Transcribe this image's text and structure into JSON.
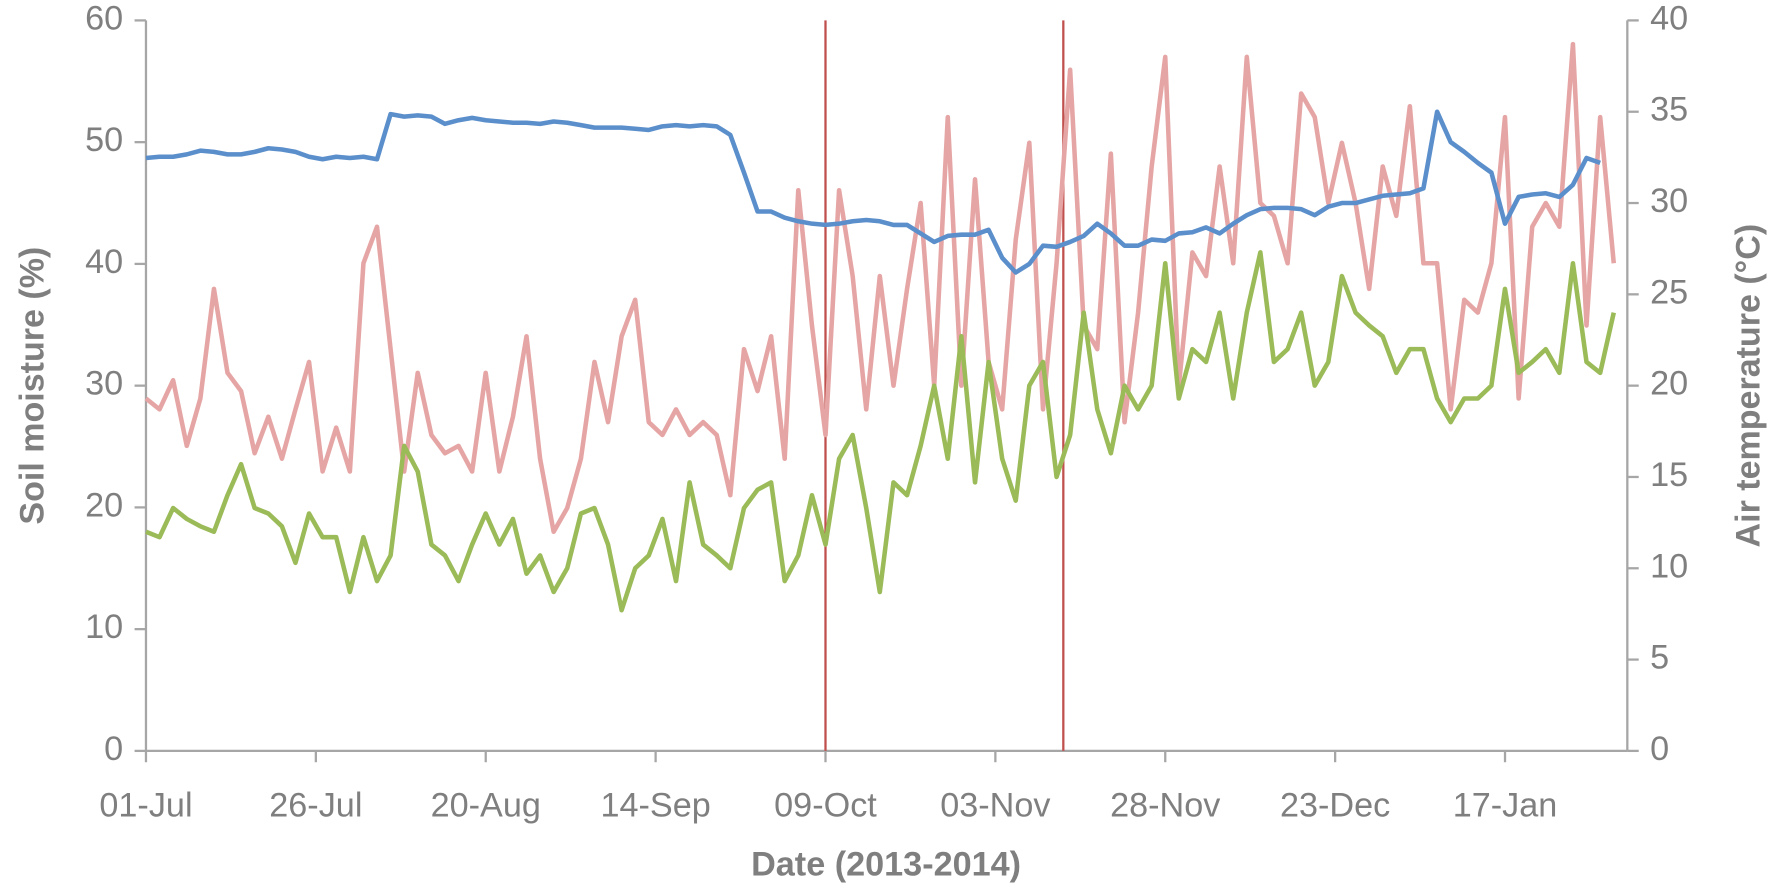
{
  "chart_data": {
    "type": "line",
    "xlabel": "Date (2013-2014)",
    "ylabel": "Soil moisture (%)",
    "y2label": "Air temperature (°C)",
    "xlim": [
      0,
      218
    ],
    "xticks": [
      {
        "value": 0,
        "label": "01-Jul"
      },
      {
        "value": 25,
        "label": "26-Jul"
      },
      {
        "value": 50,
        "label": "20-Aug"
      },
      {
        "value": 75,
        "label": "14-Sep"
      },
      {
        "value": 100,
        "label": "09-Oct"
      },
      {
        "value": 125,
        "label": "03-Nov"
      },
      {
        "value": 150,
        "label": "28-Nov"
      },
      {
        "value": 175,
        "label": "23-Dec"
      },
      {
        "value": 200,
        "label": "17-Jan"
      }
    ],
    "ylim": [
      0,
      60
    ],
    "yticks": [
      0,
      10,
      20,
      30,
      40,
      50,
      60
    ],
    "y2lim": [
      0,
      40
    ],
    "y2ticks": [
      0,
      5,
      10,
      15,
      20,
      25,
      30,
      35,
      40
    ],
    "vlines": [
      100,
      135
    ],
    "vline_color": "#c0504d",
    "x": [
      0,
      2,
      4,
      6,
      8,
      10,
      12,
      14,
      16,
      18,
      20,
      22,
      24,
      26,
      28,
      30,
      32,
      34,
      36,
      38,
      40,
      42,
      44,
      46,
      48,
      50,
      52,
      54,
      56,
      58,
      60,
      62,
      64,
      66,
      68,
      70,
      72,
      74,
      76,
      78,
      80,
      82,
      84,
      86,
      88,
      90,
      92,
      94,
      96,
      98,
      100,
      102,
      104,
      106,
      108,
      110,
      112,
      114,
      116,
      118,
      120,
      122,
      124,
      126,
      128,
      130,
      132,
      134,
      136,
      138,
      140,
      142,
      144,
      146,
      148,
      150,
      152,
      154,
      156,
      158,
      160,
      162,
      164,
      166,
      168,
      170,
      172,
      174,
      176,
      178,
      180,
      182,
      184,
      186,
      188,
      190,
      192,
      194,
      196,
      198,
      200,
      202,
      204,
      206,
      208,
      210,
      212,
      214,
      216
    ],
    "series": [
      {
        "color": "#e6a5a5",
        "axis": "y2",
        "values": [
          19.3,
          18.7,
          20.3,
          16.7,
          19.3,
          25.3,
          20.7,
          19.7,
          16.3,
          18.3,
          16,
          18.7,
          21.3,
          15.3,
          17.7,
          15.3,
          26.7,
          28.7,
          22,
          15.3,
          20.7,
          17.3,
          16.3,
          16.7,
          15.3,
          20.7,
          15.3,
          18.3,
          22.7,
          16,
          12,
          13.3,
          16,
          21.3,
          18,
          22.7,
          24.7,
          18,
          17.3,
          18.7,
          17.3,
          18,
          17.3,
          14,
          22,
          19.7,
          22.7,
          16,
          30.7,
          23.3,
          17.3,
          30.7,
          26,
          18.7,
          26,
          20,
          25.3,
          30,
          20,
          34.7,
          20,
          31.3,
          21.3,
          18.7,
          28,
          33.3,
          18.7,
          26.7,
          37.3,
          23.3,
          22,
          32.7,
          18,
          24,
          32,
          38,
          20,
          27.3,
          26,
          32,
          26.7,
          38,
          30,
          29.3,
          26.7,
          36,
          34.7,
          30,
          33.3,
          30,
          25.3,
          32,
          29.3,
          35.3,
          26.7,
          26.7,
          18.7,
          24.7,
          24,
          26.7,
          34.7,
          19.3,
          28.7,
          30,
          28.7,
          38.7,
          23.3,
          34.7,
          26.7
        ]
      },
      {
        "color": "#9bbb59",
        "axis": "y2",
        "values": [
          12,
          11.7,
          13.3,
          12.7,
          12.3,
          12,
          14,
          15.7,
          13.3,
          13,
          12.3,
          10.3,
          13,
          11.7,
          11.7,
          8.7,
          11.7,
          9.3,
          10.7,
          16.7,
          15.3,
          11.3,
          10.7,
          9.3,
          11.3,
          13,
          11.3,
          12.7,
          9.7,
          10.7,
          8.7,
          10,
          13,
          13.3,
          11.3,
          7.7,
          10,
          10.7,
          12.7,
          9.3,
          14.7,
          11.3,
          10.7,
          10,
          13.3,
          14.3,
          14.7,
          9.3,
          10.7,
          14,
          11.3,
          16,
          17.3,
          13.3,
          8.7,
          14.7,
          14,
          16.7,
          20,
          16,
          22.7,
          14.7,
          21.3,
          16,
          13.7,
          20,
          21.3,
          15,
          17.3,
          24,
          18.7,
          16.3,
          20,
          18.7,
          20,
          26.7,
          19.3,
          22,
          21.3,
          24,
          19.3,
          24,
          27.3,
          21.3,
          22,
          24,
          20,
          21.3,
          26,
          24,
          23.3,
          22.7,
          20.7,
          22,
          22,
          19.3,
          18,
          19.3,
          19.3,
          20,
          25.3,
          20.7,
          21.3,
          22,
          20.7,
          26.7,
          21.3,
          20.7,
          24
        ]
      },
      {
        "color": "#5b8fcb",
        "axis": "y",
        "values": [
          48.7,
          48.8,
          48.8,
          49,
          49.3,
          49.2,
          49,
          49,
          49.2,
          49.5,
          49.4,
          49.2,
          48.8,
          48.6,
          48.8,
          48.7,
          48.8,
          48.6,
          52.3,
          52.1,
          52.2,
          52.1,
          51.5,
          51.8,
          52,
          51.8,
          51.7,
          51.6,
          51.6,
          51.5,
          51.7,
          51.6,
          51.4,
          51.2,
          51.2,
          51.2,
          51.1,
          51,
          51.3,
          51.4,
          51.3,
          51.4,
          51.3,
          50.6,
          47.5,
          44.3,
          44.3,
          43.8,
          43.5,
          43.3,
          43.2,
          43.3,
          43.5,
          43.6,
          43.5,
          43.2,
          43.2,
          42.5,
          41.8,
          42.3,
          42.4,
          42.4,
          42.8,
          40.5,
          39.3,
          40,
          41.5,
          41.4,
          41.8,
          42.3,
          43.3,
          42.5,
          41.5,
          41.5,
          42,
          41.9,
          42.5,
          42.6,
          43,
          42.5,
          43.3,
          44,
          44.5,
          44.6,
          44.6,
          44.5,
          44,
          44.7,
          45,
          45,
          45.3,
          45.6,
          45.7,
          45.8,
          46.2,
          52.5,
          50,
          49.2,
          48.3,
          47.5,
          43.3,
          45.5,
          45.7,
          45.8,
          45.5,
          46.5,
          48.7,
          48.3,
          null
        ]
      }
    ]
  }
}
